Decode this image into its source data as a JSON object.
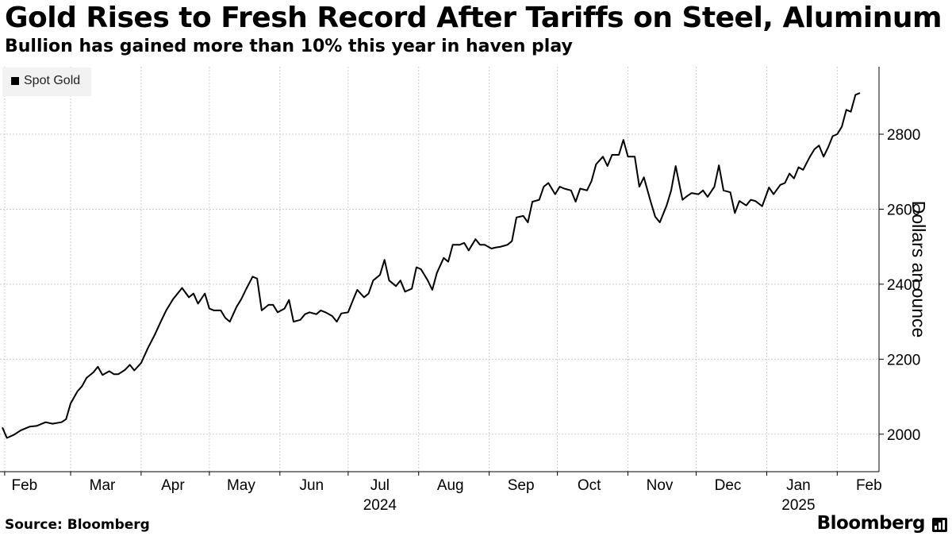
{
  "header": {
    "title": "Gold Rises to Fresh Record After Tariffs on Steel, Aluminum",
    "subtitle": "Bullion has gained more than 10% this year in haven play"
  },
  "footer": {
    "source": "Source: Bloomberg",
    "brand": "Bloomberg"
  },
  "colors": {
    "line": "#000000",
    "grid": "#cccccc",
    "legend_bg": "#f2f2f2"
  },
  "chart_data": {
    "type": "line",
    "title": "Gold Rises to Fresh Record After Tariffs on Steel, Aluminum",
    "subtitle": "Bullion has gained more than 10% this year in haven play",
    "xlabel": "",
    "ylabel": "Dollars an ounce",
    "ylim": [
      1900,
      2980
    ],
    "y_ticks": [
      2000,
      2200,
      2400,
      2600,
      2800
    ],
    "grid": true,
    "legend": [
      "Spot Gold"
    ],
    "legend_position": "top-left",
    "x_range": [
      "2024-01-31",
      "2025-02-11"
    ],
    "x_ticks": [
      {
        "label": "Feb",
        "date": "2024-02-01",
        "year": ""
      },
      {
        "label": "Mar",
        "date": "2024-03-01",
        "year": ""
      },
      {
        "label": "Apr",
        "date": "2024-04-01",
        "year": ""
      },
      {
        "label": "May",
        "date": "2024-05-01",
        "year": ""
      },
      {
        "label": "Jun",
        "date": "2024-06-01",
        "year": ""
      },
      {
        "label": "Jul",
        "date": "2024-07-01",
        "year": "2024"
      },
      {
        "label": "Aug",
        "date": "2024-08-01",
        "year": ""
      },
      {
        "label": "Sep",
        "date": "2024-09-01",
        "year": ""
      },
      {
        "label": "Oct",
        "date": "2024-10-01",
        "year": ""
      },
      {
        "label": "Nov",
        "date": "2024-11-01",
        "year": ""
      },
      {
        "label": "Dec",
        "date": "2024-12-01",
        "year": ""
      },
      {
        "label": "Jan",
        "date": "2025-01-01",
        "year": "2025"
      },
      {
        "label": "Feb",
        "date": "2025-02-01",
        "year": ""
      }
    ],
    "series": [
      {
        "name": "Spot Gold",
        "points": [
          [
            "2024-01-31",
            2018
          ],
          [
            "2024-02-02",
            1990
          ],
          [
            "2024-02-05",
            1998
          ],
          [
            "2024-02-08",
            2010
          ],
          [
            "2024-02-12",
            2020
          ],
          [
            "2024-02-15",
            2022
          ],
          [
            "2024-02-19",
            2032
          ],
          [
            "2024-02-22",
            2028
          ],
          [
            "2024-02-26",
            2032
          ],
          [
            "2024-02-28",
            2040
          ],
          [
            "2024-03-01",
            2082
          ],
          [
            "2024-03-04",
            2114
          ],
          [
            "2024-03-06",
            2128
          ],
          [
            "2024-03-08",
            2150
          ],
          [
            "2024-03-11",
            2165
          ],
          [
            "2024-03-13",
            2180
          ],
          [
            "2024-03-15",
            2158
          ],
          [
            "2024-03-18",
            2168
          ],
          [
            "2024-03-20",
            2160
          ],
          [
            "2024-03-22",
            2160
          ],
          [
            "2024-03-25",
            2172
          ],
          [
            "2024-03-27",
            2185
          ],
          [
            "2024-03-29",
            2170
          ],
          [
            "2024-04-01",
            2190
          ],
          [
            "2024-04-04",
            2230
          ],
          [
            "2024-04-07",
            2265
          ],
          [
            "2024-04-10",
            2305
          ],
          [
            "2024-04-12",
            2330
          ],
          [
            "2024-04-15",
            2360
          ],
          [
            "2024-04-17",
            2375
          ],
          [
            "2024-04-19",
            2390
          ],
          [
            "2024-04-22",
            2365
          ],
          [
            "2024-04-24",
            2375
          ],
          [
            "2024-04-26",
            2348
          ],
          [
            "2024-04-29",
            2375
          ],
          [
            "2024-05-01",
            2335
          ],
          [
            "2024-05-03",
            2330
          ],
          [
            "2024-05-06",
            2330
          ],
          [
            "2024-05-08",
            2310
          ],
          [
            "2024-05-10",
            2300
          ],
          [
            "2024-05-13",
            2340
          ],
          [
            "2024-05-15",
            2360
          ],
          [
            "2024-05-17",
            2385
          ],
          [
            "2024-05-20",
            2420
          ],
          [
            "2024-05-22",
            2415
          ],
          [
            "2024-05-24",
            2330
          ],
          [
            "2024-05-27",
            2345
          ],
          [
            "2024-05-29",
            2345
          ],
          [
            "2024-05-31",
            2325
          ],
          [
            "2024-06-03",
            2335
          ],
          [
            "2024-06-05",
            2358
          ],
          [
            "2024-06-07",
            2300
          ],
          [
            "2024-06-10",
            2305
          ],
          [
            "2024-06-12",
            2320
          ],
          [
            "2024-06-14",
            2325
          ],
          [
            "2024-06-17",
            2320
          ],
          [
            "2024-06-19",
            2330
          ],
          [
            "2024-06-21",
            2325
          ],
          [
            "2024-06-24",
            2315
          ],
          [
            "2024-06-26",
            2300
          ],
          [
            "2024-06-28",
            2322
          ],
          [
            "2024-07-01",
            2325
          ],
          [
            "2024-07-03",
            2356
          ],
          [
            "2024-07-05",
            2385
          ],
          [
            "2024-07-08",
            2365
          ],
          [
            "2024-07-10",
            2375
          ],
          [
            "2024-07-12",
            2410
          ],
          [
            "2024-07-15",
            2425
          ],
          [
            "2024-07-17",
            2465
          ],
          [
            "2024-07-19",
            2410
          ],
          [
            "2024-07-22",
            2395
          ],
          [
            "2024-07-24",
            2410
          ],
          [
            "2024-07-26",
            2380
          ],
          [
            "2024-07-29",
            2388
          ],
          [
            "2024-07-31",
            2445
          ],
          [
            "2024-08-02",
            2440
          ],
          [
            "2024-08-05",
            2410
          ],
          [
            "2024-08-07",
            2385
          ],
          [
            "2024-08-09",
            2430
          ],
          [
            "2024-08-12",
            2470
          ],
          [
            "2024-08-14",
            2460
          ],
          [
            "2024-08-16",
            2505
          ],
          [
            "2024-08-19",
            2505
          ],
          [
            "2024-08-21",
            2510
          ],
          [
            "2024-08-23",
            2490
          ],
          [
            "2024-08-26",
            2520
          ],
          [
            "2024-08-28",
            2505
          ],
          [
            "2024-08-30",
            2505
          ],
          [
            "2024-09-02",
            2495
          ],
          [
            "2024-09-04",
            2498
          ],
          [
            "2024-09-06",
            2500
          ],
          [
            "2024-09-09",
            2505
          ],
          [
            "2024-09-11",
            2515
          ],
          [
            "2024-09-13",
            2578
          ],
          [
            "2024-09-16",
            2582
          ],
          [
            "2024-09-18",
            2565
          ],
          [
            "2024-09-20",
            2620
          ],
          [
            "2024-09-23",
            2625
          ],
          [
            "2024-09-25",
            2660
          ],
          [
            "2024-09-27",
            2670
          ],
          [
            "2024-09-30",
            2640
          ],
          [
            "2024-10-02",
            2660
          ],
          [
            "2024-10-04",
            2655
          ],
          [
            "2024-10-07",
            2650
          ],
          [
            "2024-10-09",
            2620
          ],
          [
            "2024-10-11",
            2655
          ],
          [
            "2024-10-14",
            2650
          ],
          [
            "2024-10-16",
            2675
          ],
          [
            "2024-10-18",
            2720
          ],
          [
            "2024-10-21",
            2740
          ],
          [
            "2024-10-23",
            2715
          ],
          [
            "2024-10-25",
            2745
          ],
          [
            "2024-10-28",
            2745
          ],
          [
            "2024-10-30",
            2785
          ],
          [
            "2024-11-01",
            2740
          ],
          [
            "2024-11-04",
            2740
          ],
          [
            "2024-11-06",
            2660
          ],
          [
            "2024-11-08",
            2685
          ],
          [
            "2024-11-11",
            2620
          ],
          [
            "2024-11-13",
            2580
          ],
          [
            "2024-11-15",
            2565
          ],
          [
            "2024-11-18",
            2610
          ],
          [
            "2024-11-20",
            2650
          ],
          [
            "2024-11-22",
            2715
          ],
          [
            "2024-11-25",
            2625
          ],
          [
            "2024-11-27",
            2635
          ],
          [
            "2024-11-29",
            2643
          ],
          [
            "2024-12-02",
            2640
          ],
          [
            "2024-12-04",
            2650
          ],
          [
            "2024-12-06",
            2633
          ],
          [
            "2024-12-09",
            2660
          ],
          [
            "2024-12-11",
            2717
          ],
          [
            "2024-12-13",
            2650
          ],
          [
            "2024-12-16",
            2645
          ],
          [
            "2024-12-18",
            2590
          ],
          [
            "2024-12-20",
            2622
          ],
          [
            "2024-12-23",
            2610
          ],
          [
            "2024-12-25",
            2625
          ],
          [
            "2024-12-27",
            2622
          ],
          [
            "2024-12-30",
            2608
          ],
          [
            "2025-01-02",
            2658
          ],
          [
            "2025-01-04",
            2640
          ],
          [
            "2025-01-07",
            2665
          ],
          [
            "2025-01-09",
            2670
          ],
          [
            "2025-01-11",
            2695
          ],
          [
            "2025-01-13",
            2682
          ],
          [
            "2025-01-15",
            2712
          ],
          [
            "2025-01-17",
            2705
          ],
          [
            "2025-01-20",
            2740
          ],
          [
            "2025-01-22",
            2760
          ],
          [
            "2025-01-24",
            2770
          ],
          [
            "2025-01-26",
            2740
          ],
          [
            "2025-01-28",
            2765
          ],
          [
            "2025-01-30",
            2795
          ],
          [
            "2025-02-01",
            2800
          ],
          [
            "2025-02-03",
            2820
          ],
          [
            "2025-02-05",
            2865
          ],
          [
            "2025-02-07",
            2860
          ],
          [
            "2025-02-09",
            2905
          ],
          [
            "2025-02-11",
            2910
          ]
        ]
      }
    ]
  }
}
